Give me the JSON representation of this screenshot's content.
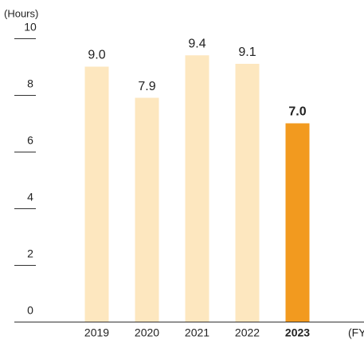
{
  "chart_data": {
    "type": "bar",
    "y_unit": "(Hours)",
    "x_unit": "(FY",
    "categories": [
      "2019",
      "2020",
      "2021",
      "2022",
      "2023"
    ],
    "values": [
      9.0,
      7.9,
      9.4,
      9.1,
      7.0
    ],
    "value_labels": [
      "9.0",
      "7.9",
      "9.4",
      "9.1",
      "7.0"
    ],
    "color": "#fde7bf",
    "highlight": "2023",
    "highlight_color": "#f29a1f",
    "ylim": [
      0,
      10
    ],
    "yticks": [
      0,
      2,
      4,
      6,
      8,
      10
    ]
  }
}
